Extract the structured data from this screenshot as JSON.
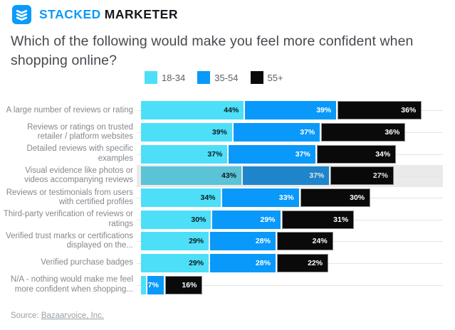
{
  "header": {
    "logo_icon": "stacked-layers-icon",
    "logo_primary": "STACKED",
    "logo_secondary": "MARKETER"
  },
  "title": "Which of the following would make you feel more confident when shopping online?",
  "source": {
    "prefix": "Source: ",
    "link_text": "Bazaarvoice, Inc."
  },
  "chart_data": {
    "type": "bar",
    "orientation": "horizontal",
    "stacked": true,
    "unit": "%",
    "grid": "faint horizontal line per row, right of bars",
    "legend_position": "top",
    "highlight_row_index": 3,
    "highlight_band_color": "#EAEAEA",
    "value_label_position": "inside-right",
    "xlim": [
      0,
      129
    ],
    "categories": [
      "A large number of reviews or rating",
      "Reviews or ratings on trusted retailer / platform websites",
      "Detailed reviews with specific examples",
      "Visual evidence like photos or videos accompanying reviews",
      "Reviews or testimonials from users with certified profiles",
      "Third-party verification of reviews or ratings",
      "Verified trust marks or certifications displayed on the...",
      "Verified purchase badges",
      "N/A - nothing would make me feel more confident when shopping..."
    ],
    "series": [
      {
        "name": "18-34",
        "color": "#4DDFF8",
        "values": [
          44,
          39,
          37,
          43,
          34,
          30,
          29,
          29,
          2
        ],
        "labels": [
          "44%",
          "39%",
          "37%",
          "43%",
          "34%",
          "30%",
          "29%",
          "29%",
          ""
        ]
      },
      {
        "name": "35-54",
        "color": "#0999FA",
        "values": [
          39,
          37,
          37,
          37,
          33,
          29,
          28,
          28,
          7
        ],
        "labels": [
          "39%",
          "37%",
          "37%",
          "37%",
          "33%",
          "29%",
          "28%",
          "28%",
          "7%"
        ]
      },
      {
        "name": "55+",
        "color": "#0A0A0A",
        "values": [
          36,
          36,
          34,
          27,
          30,
          31,
          24,
          22,
          16
        ],
        "labels": [
          "36%",
          "36%",
          "34%",
          "27%",
          "30%",
          "31%",
          "24%",
          "22%",
          "16%"
        ]
      }
    ]
  }
}
